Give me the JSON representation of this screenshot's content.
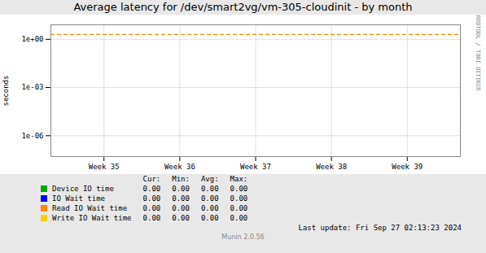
{
  "chart_data": {
    "type": "line",
    "title": "Average latency for /dev/smart2vg/vm-305-cloudinit - by month",
    "ylabel": "seconds",
    "log": "y",
    "grid": true,
    "xlim": [
      34.3,
      39.7
    ],
    "xticks": [
      {
        "value": 35,
        "label": "Week 35"
      },
      {
        "value": 36,
        "label": "Week 36"
      },
      {
        "value": 37,
        "label": "Week 37"
      },
      {
        "value": 38,
        "label": "Week 38"
      },
      {
        "value": 39,
        "label": "Week 39"
      }
    ],
    "ylim": [
      5e-08,
      8.0
    ],
    "yticks": [
      {
        "value": 1e-06,
        "label": "1e-06"
      },
      {
        "value": 0.001,
        "label": "1e-03"
      },
      {
        "value": 1.0,
        "label": "1e+00"
      }
    ],
    "hlines": [
      {
        "y": 2.0,
        "color": "#ff8800",
        "line_style": "dashed"
      }
    ],
    "legend_table": {
      "columns": [
        "Cur:",
        "Min:",
        "Avg:",
        "Max:"
      ],
      "rows": [
        {
          "name": "Device IO time",
          "color": "#00aa00",
          "values": [
            0.0,
            0.0,
            0.0,
            0.0
          ],
          "value_labels": [
            "0.00",
            "0.00",
            "0.00",
            "0.00"
          ]
        },
        {
          "name": "IO Wait time",
          "color": "#0000ff",
          "values": [
            0.0,
            0.0,
            0.0,
            0.0
          ],
          "value_labels": [
            "0.00",
            "0.00",
            "0.00",
            "0.00"
          ]
        },
        {
          "name": "Read IO Wait time",
          "color": "#ff8800",
          "values": [
            0.0,
            0.0,
            0.0,
            0.0
          ],
          "value_labels": [
            "0.00",
            "0.00",
            "0.00",
            "0.00"
          ]
        },
        {
          "name": "Write IO Wait time",
          "color": "#ffcc00",
          "values": [
            0.0,
            0.0,
            0.0,
            0.0
          ],
          "value_labels": [
            "0.00",
            "0.00",
            "0.00",
            "0.00"
          ]
        }
      ]
    },
    "annotations": [
      "Last update: Fri Sep 27 02:13:23 2024",
      "Munin 2.0.56",
      "RRDTOOL / TOBI OETIKER"
    ]
  }
}
